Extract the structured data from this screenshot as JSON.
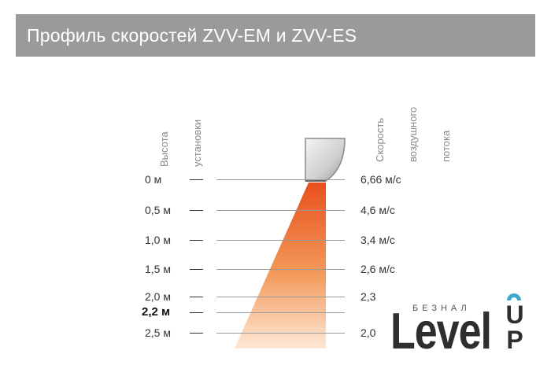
{
  "title": "Профиль скоростей ZVV-EM и ZVV-ES",
  "left_axis_label": [
    "Высота",
    "установки"
  ],
  "right_axis_label": [
    "Скорость",
    "воздушного",
    "потока"
  ],
  "rows": [
    {
      "height": "0 м",
      "speed": "6,66 м/с",
      "bold": false
    },
    {
      "height": "0,5 м",
      "speed": "4,6 м/с",
      "bold": false
    },
    {
      "height": "1,0 м",
      "speed": "3,4 м/с",
      "bold": false
    },
    {
      "height": "1,5 м",
      "speed": "2,6 м/с",
      "bold": false
    },
    {
      "height": "2,0 м",
      "speed": "2,3",
      "bold": false
    },
    {
      "height": "2,2 м",
      "speed": "",
      "bold": true
    },
    {
      "height": "2,5 м",
      "speed": "2,0",
      "bold": false
    }
  ],
  "colors": {
    "title_bg": "#9a9a9a",
    "beam_top": "#e8501e",
    "beam_mid": "#f39a5a",
    "beam_bottom": "#fde8d6",
    "logo_accent": "#3fa9c9"
  },
  "logo": {
    "small": "БЕЗНАЛ",
    "main": "Level",
    "suffix": "UP"
  }
}
